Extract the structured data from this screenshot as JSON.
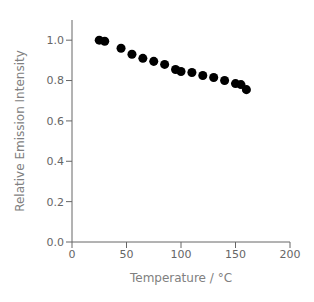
{
  "chart_data": {
    "type": "scatter",
    "x": [
      25,
      30,
      45,
      55,
      65,
      75,
      85,
      95,
      100,
      110,
      120,
      130,
      140,
      150,
      155,
      160
    ],
    "values": [
      1.0,
      0.995,
      0.96,
      0.93,
      0.91,
      0.895,
      0.88,
      0.855,
      0.845,
      0.84,
      0.825,
      0.815,
      0.8,
      0.785,
      0.78,
      0.755
    ],
    "xlabel": "Temperature / °C",
    "ylabel": "Relative Emission Intensity",
    "xlim": [
      0,
      200
    ],
    "ylim": [
      0.0,
      1.1
    ],
    "xticks": [
      0,
      50,
      100,
      150,
      200
    ],
    "yticks": [
      {
        "value": 0.0,
        "label": "0.0"
      },
      0.2,
      0.4,
      0.6,
      0.8,
      {
        "value": 1.0,
        "label": "1.0"
      }
    ],
    "color": "#000000",
    "grid": false
  }
}
